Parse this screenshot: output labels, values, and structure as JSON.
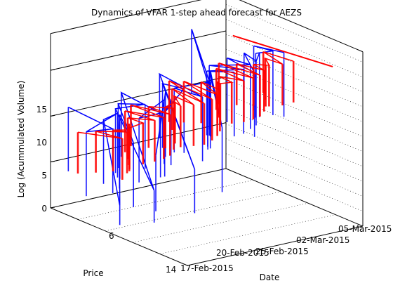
{
  "chart_data": {
    "type": "3d-line",
    "title": "Dynamics of VFAR 1-step ahead forecast for AEZS",
    "xlabel": "Date",
    "ylabel": "Price",
    "zlabel": "Log (Acummulated Volume)",
    "date_ticks": [
      "17-Feb-2015",
      "20-Feb-2015",
      "25-Feb-2015",
      "02-Mar-2015",
      "05-Mar-2015"
    ],
    "price_ticks": [
      "14",
      "6"
    ],
    "volume_ticks": [
      "0",
      "5",
      "10",
      "15"
    ],
    "zlim": [
      0,
      15
    ],
    "grid": true,
    "series": [
      {
        "color": "#0000ff",
        "values": [
          11.8,
          11.2,
          9.4,
          12.6,
          11.0,
          2.1,
          10.7,
          11.5,
          8.8,
          12.1,
          13.0,
          10.9,
          3.5,
          12.4,
          11.7,
          9.9,
          12.8,
          6.1,
          13.1,
          12.2,
          10.4,
          13.6,
          12.9,
          4.8,
          13.3,
          12.5,
          11.9,
          13.8,
          18.6,
          13.2,
          12.7,
          14.0,
          8.2,
          13.5,
          14.3,
          12.9,
          14.5,
          13.1,
          14.8,
          14.2,
          13.6,
          15.0,
          14.4,
          15.2,
          14.7,
          15.5,
          14.9,
          15.3
        ]
      },
      {
        "color": "#ff0000",
        "values": [
          9.5,
          10.6,
          9.9,
          11.0,
          10.3,
          10.8,
          11.2,
          10.5,
          11.4,
          11.0,
          11.7,
          11.1,
          11.9,
          11.5,
          12.0,
          11.6,
          12.3,
          11.8,
          12.5,
          12.1,
          12.6,
          12.3,
          12.8,
          12.4,
          13.0,
          12.7,
          13.1,
          12.9,
          13.3,
          13.0,
          13.5,
          13.2,
          13.6,
          13.4,
          13.8,
          13.6,
          14.0,
          13.8,
          14.1,
          14.0,
          14.3,
          14.2,
          14.4,
          14.3,
          14.6,
          14.5,
          14.7,
          14.8
        ]
      }
    ]
  }
}
